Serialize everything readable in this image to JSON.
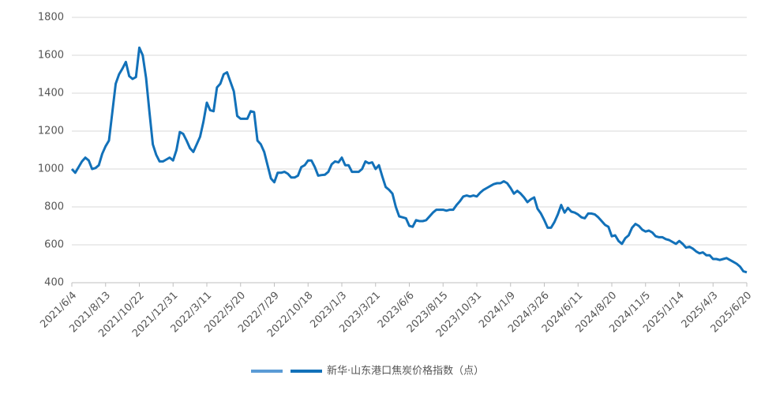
{
  "chart_data": {
    "type": "line",
    "categories": [
      "2021/6/4",
      null,
      null,
      null,
      null,
      null,
      null,
      null,
      null,
      null,
      "2021/8/13",
      null,
      null,
      null,
      null,
      null,
      null,
      null,
      null,
      null,
      "2021/10/22",
      null,
      null,
      null,
      null,
      null,
      null,
      null,
      null,
      null,
      "2021/12/31",
      null,
      null,
      null,
      null,
      null,
      null,
      null,
      null,
      null,
      "2022/3/11",
      null,
      null,
      null,
      null,
      null,
      null,
      null,
      null,
      null,
      "2022/5/20",
      null,
      null,
      null,
      null,
      null,
      null,
      null,
      null,
      null,
      "2022/7/29",
      null,
      null,
      null,
      null,
      null,
      null,
      null,
      null,
      null,
      "2022/10/18",
      null,
      null,
      null,
      null,
      null,
      null,
      null,
      null,
      null,
      "2023/1/3",
      null,
      null,
      null,
      null,
      null,
      null,
      null,
      null,
      null,
      "2023/3/21",
      null,
      null,
      null,
      null,
      null,
      null,
      null,
      null,
      null,
      "2023/6/6",
      null,
      null,
      null,
      null,
      null,
      null,
      null,
      null,
      null,
      "2023/8/15",
      null,
      null,
      null,
      null,
      null,
      null,
      null,
      null,
      null,
      "2023/10/31",
      null,
      null,
      null,
      null,
      null,
      null,
      null,
      null,
      null,
      "2024/1/9",
      null,
      null,
      null,
      null,
      null,
      null,
      null,
      null,
      null,
      "2024/3/26",
      null,
      null,
      null,
      null,
      null,
      null,
      null,
      null,
      null,
      "2024/6/11",
      null,
      null,
      null,
      null,
      null,
      null,
      null,
      null,
      null,
      "2024/8/20",
      null,
      null,
      null,
      null,
      null,
      null,
      null,
      null,
      null,
      "2024/11/5",
      null,
      null,
      null,
      null,
      null,
      null,
      null,
      null,
      null,
      "2025/1/14",
      null,
      null,
      null,
      null,
      null,
      null,
      null,
      null,
      null,
      "2025/4/3",
      null,
      null,
      null,
      null,
      null,
      null,
      null,
      null,
      null,
      "2025/6/20"
    ],
    "series": [
      {
        "name": "新华·山东港口焦炭价格指数（点）",
        "color": "#1271b9",
        "values": [
          1000,
          980,
          1010,
          1040,
          1060,
          1045,
          1000,
          1005,
          1020,
          1080,
          1120,
          1150,
          1300,
          1450,
          1500,
          1530,
          1565,
          1490,
          1475,
          1485,
          1640,
          1600,
          1480,
          1300,
          1130,
          1075,
          1040,
          1040,
          1050,
          1060,
          1045,
          1100,
          1195,
          1185,
          1150,
          1110,
          1090,
          1130,
          1170,
          1250,
          1350,
          1310,
          1305,
          1430,
          1450,
          1500,
          1510,
          1460,
          1410,
          1280,
          1265,
          1265,
          1265,
          1305,
          1300,
          1150,
          1130,
          1090,
          1020,
          950,
          930,
          980,
          980,
          985,
          975,
          955,
          955,
          965,
          1010,
          1020,
          1045,
          1045,
          1010,
          965,
          968,
          970,
          985,
          1025,
          1040,
          1035,
          1060,
          1020,
          1020,
          985,
          985,
          985,
          1000,
          1040,
          1030,
          1035,
          1000,
          1020,
          960,
          905,
          890,
          870,
          800,
          750,
          745,
          740,
          700,
          695,
          730,
          725,
          725,
          730,
          750,
          770,
          785,
          785,
          785,
          780,
          785,
          785,
          810,
          830,
          855,
          860,
          855,
          860,
          855,
          875,
          890,
          900,
          910,
          920,
          925,
          925,
          935,
          925,
          900,
          870,
          885,
          870,
          850,
          825,
          840,
          850,
          790,
          765,
          730,
          690,
          690,
          720,
          760,
          810,
          770,
          795,
          775,
          770,
          760,
          745,
          740,
          765,
          765,
          760,
          745,
          725,
          705,
          695,
          645,
          650,
          620,
          605,
          635,
          650,
          690,
          710,
          700,
          680,
          670,
          675,
          665,
          645,
          640,
          640,
          630,
          625,
          615,
          605,
          620,
          605,
          585,
          590,
          580,
          565,
          555,
          560,
          545,
          545,
          525,
          525,
          520,
          525,
          530,
          520,
          510,
          500,
          485,
          460,
          455
        ]
      }
    ],
    "ylim": [
      400,
      1800
    ],
    "yticks": [
      400,
      600,
      800,
      1000,
      1200,
      1400,
      1600,
      1800
    ],
    "grid": true
  }
}
